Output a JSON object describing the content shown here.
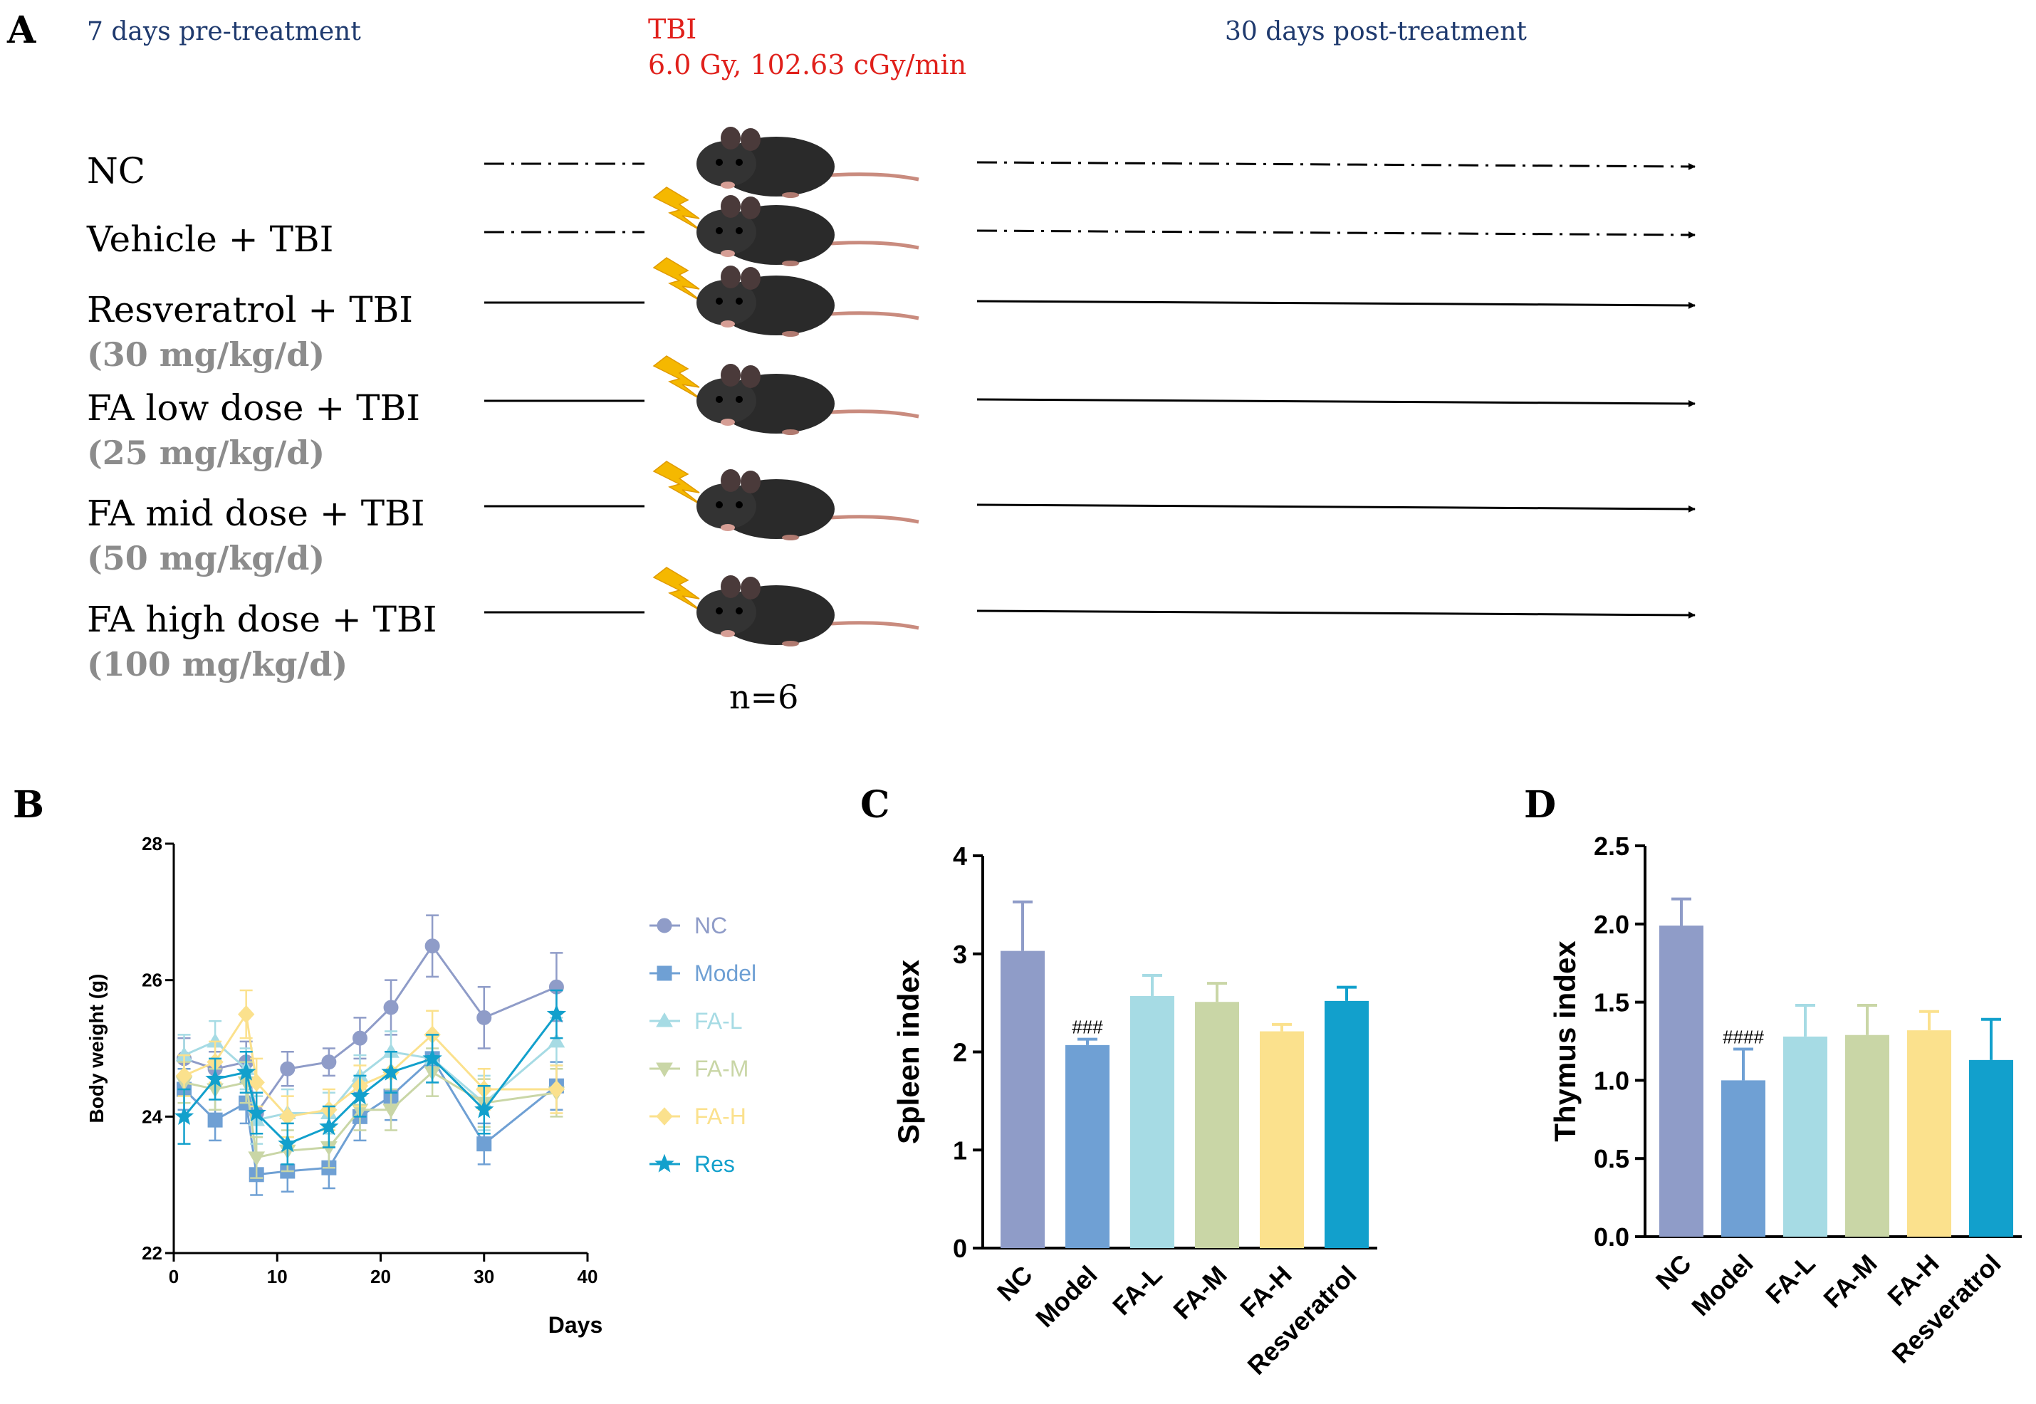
{
  "panel_a": {
    "label": "A",
    "pre_label": "7 days pre-treatment",
    "tbi_label": "TBI",
    "tbi_dose": "6.0 Gy, 102.63 cGy/min",
    "post_label": "30 days post-treatment",
    "n_label": "n=6",
    "groups": [
      {
        "name": "NC",
        "dose": "",
        "line": "dash-dot",
        "irradiated": false
      },
      {
        "name": "Vehicle + TBI",
        "dose": "",
        "line": "dash-dot",
        "irradiated": true
      },
      {
        "name": "Resveratrol + TBI",
        "dose": "(30 mg/kg/d)",
        "line": "solid",
        "irradiated": true
      },
      {
        "name": "FA low dose + TBI",
        "dose": "(25 mg/kg/d)",
        "line": "solid",
        "irradiated": true
      },
      {
        "name": "FA mid dose + TBI",
        "dose": "(50 mg/kg/d)",
        "line": "solid",
        "irradiated": true
      },
      {
        "name": "FA high dose + TBI",
        "dose": "(100 mg/kg/d)",
        "line": "solid",
        "irradiated": true
      }
    ]
  },
  "colors": {
    "blue_text": "#1f3a6e",
    "red_text": "#e0201b",
    "gray_text": "#8c8c8c",
    "NC": "#8f9cc8",
    "Model": "#6fa0d4",
    "FA-L": "#a6dbe4",
    "FA-M": "#c9d6a6",
    "FA-H": "#fbe18d",
    "Res": "#12a0cc"
  },
  "chart_data": [
    {
      "panel": "B",
      "type": "line",
      "xlabel": "Days",
      "ylabel": "Body weight  (g)",
      "xlim": [
        0,
        40
      ],
      "ylim": [
        22,
        28
      ],
      "xticks": [
        0,
        10,
        20,
        30,
        40
      ],
      "yticks": [
        22,
        24,
        26,
        28
      ],
      "series": [
        {
          "name": "NC",
          "marker": "circle",
          "x": [
            1,
            4,
            7,
            8,
            11,
            15,
            18,
            21,
            25,
            30,
            37
          ],
          "y": [
            24.85,
            24.7,
            24.8,
            24.05,
            24.7,
            24.8,
            25.15,
            25.6,
            26.5,
            25.45,
            25.9
          ],
          "err": [
            0.3,
            0.25,
            0.3,
            0.3,
            0.25,
            0.2,
            0.3,
            0.4,
            0.45,
            0.45,
            0.5
          ]
        },
        {
          "name": "Model",
          "marker": "square",
          "x": [
            1,
            4,
            7,
            8,
            11,
            15,
            18,
            21,
            25,
            30,
            37
          ],
          "y": [
            24.4,
            23.95,
            24.2,
            23.15,
            23.2,
            23.25,
            24.0,
            24.3,
            24.85,
            23.6,
            24.45
          ],
          "err": [
            0.3,
            0.3,
            0.3,
            0.3,
            0.3,
            0.3,
            0.35,
            0.35,
            0.35,
            0.3,
            0.35
          ]
        },
        {
          "name": "FA-L",
          "marker": "triangle-up",
          "x": [
            1,
            4,
            7,
            8,
            11,
            15,
            18,
            21,
            25,
            30,
            37
          ],
          "y": [
            24.9,
            25.1,
            24.7,
            23.95,
            24.05,
            24.05,
            24.6,
            24.95,
            24.85,
            24.2,
            25.1
          ],
          "err": [
            0.3,
            0.3,
            0.3,
            0.35,
            0.35,
            0.3,
            0.3,
            0.3,
            0.35,
            0.4,
            0.35
          ]
        },
        {
          "name": "FA-M",
          "marker": "triangle-down",
          "x": [
            1,
            4,
            7,
            8,
            11,
            15,
            18,
            21,
            25,
            30,
            37
          ],
          "y": [
            24.5,
            24.4,
            24.5,
            23.4,
            23.5,
            23.55,
            24.1,
            24.1,
            24.65,
            24.2,
            24.35
          ],
          "err": [
            0.3,
            0.3,
            0.3,
            0.3,
            0.3,
            0.3,
            0.3,
            0.3,
            0.35,
            0.35,
            0.35
          ]
        },
        {
          "name": "FA-H",
          "marker": "diamond",
          "x": [
            1,
            4,
            7,
            8,
            11,
            15,
            18,
            21,
            25,
            30,
            37
          ],
          "y": [
            24.6,
            24.8,
            25.5,
            24.5,
            24.0,
            24.1,
            24.45,
            24.65,
            25.2,
            24.4,
            24.4
          ],
          "err": [
            0.3,
            0.3,
            0.35,
            0.35,
            0.3,
            0.3,
            0.3,
            0.3,
            0.35,
            0.3,
            0.35
          ]
        },
        {
          "name": "Res",
          "marker": "star",
          "x": [
            1,
            4,
            7,
            8,
            11,
            15,
            18,
            21,
            25,
            30,
            37
          ],
          "y": [
            24.0,
            24.55,
            24.65,
            24.05,
            23.6,
            23.85,
            24.3,
            24.65,
            24.85,
            24.1,
            25.5
          ],
          "err": [
            0.4,
            0.3,
            0.3,
            0.3,
            0.3,
            0.3,
            0.3,
            0.3,
            0.35,
            0.35,
            0.35
          ]
        }
      ]
    },
    {
      "panel": "C",
      "type": "bar",
      "ylabel": "Spleen index",
      "ylim": [
        0,
        4
      ],
      "yticks": [
        0,
        1,
        2,
        3,
        4
      ],
      "categories": [
        "NC",
        "Model",
        "FA-L",
        "FA-M",
        "FA-H",
        "Resveratrol"
      ],
      "values": [
        3.03,
        2.07,
        2.57,
        2.51,
        2.21,
        2.52
      ],
      "errors": [
        0.5,
        0.06,
        0.21,
        0.19,
        0.07,
        0.14
      ],
      "annotations": [
        {
          "category": "Model",
          "text": "###"
        }
      ]
    },
    {
      "panel": "D",
      "type": "bar",
      "ylabel": "Thymus index",
      "ylim": [
        0,
        2.5
      ],
      "yticks": [
        "0.0",
        "0.5",
        "1.0",
        "1.5",
        "2.0",
        "2.5"
      ],
      "categories": [
        "NC",
        "Model",
        "FA-L",
        "FA-M",
        "FA-H",
        "Resveratrol"
      ],
      "values": [
        1.99,
        1.0,
        1.28,
        1.29,
        1.32,
        1.13
      ],
      "errors": [
        0.17,
        0.2,
        0.2,
        0.19,
        0.12,
        0.26
      ],
      "annotations": [
        {
          "category": "Model",
          "text": "####"
        }
      ]
    }
  ]
}
